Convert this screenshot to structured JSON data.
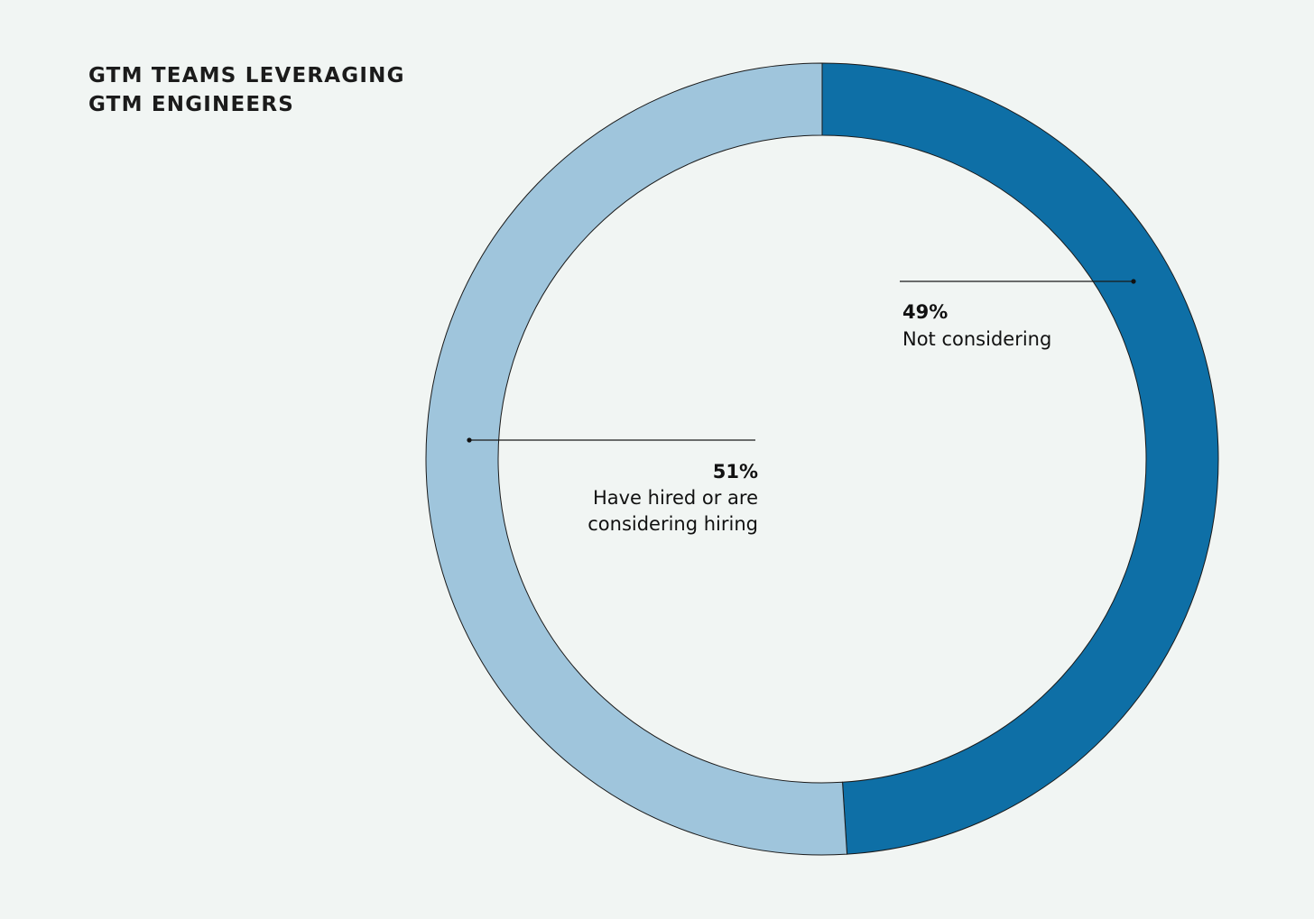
{
  "chart_data": {
    "type": "pie",
    "variant": "donut",
    "title_lines": [
      "GTM TEAMS LEVERAGING",
      "GTM ENGINEERS"
    ],
    "slices": [
      {
        "label_lines": [
          "Not considering"
        ],
        "value": 49,
        "display": "49%",
        "color": "#0e6fa6"
      },
      {
        "label_lines": [
          "Have hired or are",
          "considering hiring"
        ],
        "value": 51,
        "display": "51%",
        "color": "#9fc5dc"
      }
    ],
    "start_angle_deg": 0,
    "direction": "clockwise",
    "legend": "none"
  }
}
